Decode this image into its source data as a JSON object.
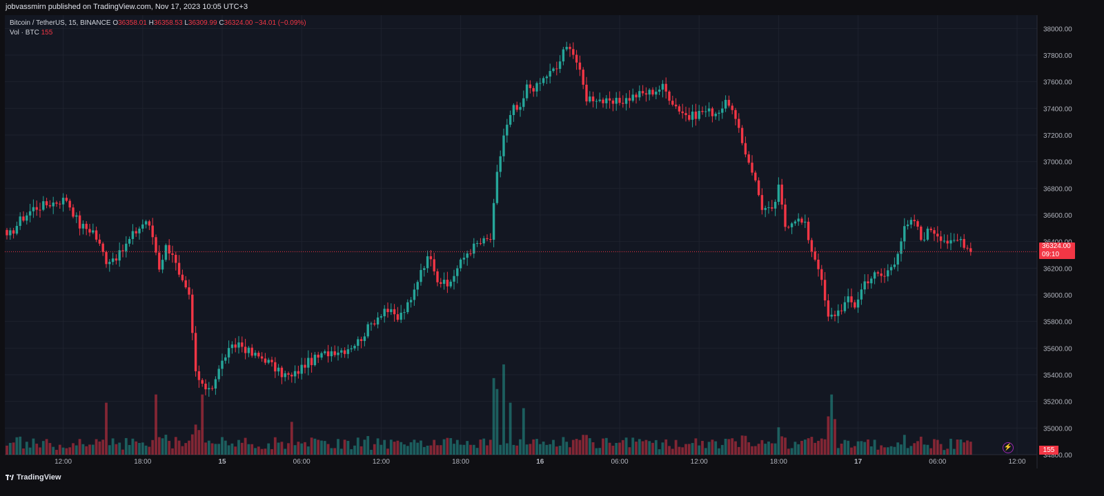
{
  "header": {
    "published": "jobvassmirn published on TradingView.com, Nov 17, 2023 10:05 UTC+3"
  },
  "legend": {
    "symbol": "Bitcoin / TetherUS, 15, BINANCE",
    "o_label": "O",
    "o_value": "36358.01",
    "h_label": "H",
    "h_value": "36358.53",
    "l_label": "L",
    "l_value": "36309.99",
    "c_label": "C",
    "c_value": "36324.00",
    "change": "−34.01 (−0.09%)",
    "vol_label": "Vol · BTC",
    "vol_value": "155"
  },
  "price_tag": {
    "price": "36324.00",
    "countdown": "09:10"
  },
  "vol_tag": "155",
  "footer": {
    "brand": "TradingView"
  },
  "colors": {
    "up": "#26a69a",
    "down": "#f23645",
    "grid": "#1e222d",
    "bg": "#131722",
    "text": "#b2b5be"
  },
  "chart_data": {
    "type": "candlestick",
    "title": "Bitcoin / TetherUS, 15, BINANCE",
    "ylim": [
      34800,
      38100
    ],
    "y_ticks": [
      "38000.00",
      "37800.00",
      "37600.00",
      "37400.00",
      "37200.00",
      "37000.00",
      "36800.00",
      "36600.00",
      "36400.00",
      "36200.00",
      "36000.00",
      "35800.00",
      "35600.00",
      "35400.00",
      "35200.00",
      "35000.00",
      "34800.00"
    ],
    "x_ticks": [
      "12:00",
      "18:00",
      "15",
      "06:00",
      "12:00",
      "18:00",
      "16",
      "06:00",
      "12:00",
      "18:00",
      "17",
      "06:00",
      "12:00"
    ],
    "bold_ticks": [
      "15",
      "16",
      "17"
    ],
    "x_tick_index": [
      17,
      41,
      65,
      89,
      113,
      137,
      161,
      185,
      209,
      233,
      257,
      281,
      305
    ],
    "last_price": 36324.0,
    "anchors": [
      [
        0,
        36420
      ],
      [
        4,
        36560
      ],
      [
        8,
        36650
      ],
      [
        12,
        36680
      ],
      [
        18,
        36720
      ],
      [
        22,
        36520
      ],
      [
        26,
        36480
      ],
      [
        30,
        36260
      ],
      [
        34,
        36300
      ],
      [
        38,
        36450
      ],
      [
        42,
        36560
      ],
      [
        44,
        36440
      ],
      [
        46,
        36210
      ],
      [
        48,
        36360
      ],
      [
        50,
        36320
      ],
      [
        52,
        36130
      ],
      [
        55,
        35980
      ],
      [
        57,
        35420
      ],
      [
        59,
        35300
      ],
      [
        62,
        35320
      ],
      [
        66,
        35550
      ],
      [
        70,
        35640
      ],
      [
        74,
        35550
      ],
      [
        78,
        35520
      ],
      [
        82,
        35420
      ],
      [
        86,
        35380
      ],
      [
        90,
        35480
      ],
      [
        94,
        35530
      ],
      [
        98,
        35580
      ],
      [
        102,
        35590
      ],
      [
        106,
        35650
      ],
      [
        110,
        35780
      ],
      [
        114,
        35900
      ],
      [
        118,
        35820
      ],
      [
        122,
        35950
      ],
      [
        125,
        36200
      ],
      [
        128,
        36300
      ],
      [
        130,
        36120
      ],
      [
        133,
        36060
      ],
      [
        136,
        36200
      ],
      [
        139,
        36320
      ],
      [
        142,
        36380
      ],
      [
        146,
        36420
      ],
      [
        148,
        36900
      ],
      [
        150,
        37200
      ],
      [
        153,
        37400
      ],
      [
        155,
        37380
      ],
      [
        157,
        37560
      ],
      [
        160,
        37560
      ],
      [
        163,
        37650
      ],
      [
        166,
        37700
      ],
      [
        168,
        37820
      ],
      [
        170,
        37880
      ],
      [
        172,
        37750
      ],
      [
        175,
        37480
      ],
      [
        178,
        37480
      ],
      [
        182,
        37430
      ],
      [
        186,
        37460
      ],
      [
        190,
        37500
      ],
      [
        194,
        37520
      ],
      [
        198,
        37560
      ],
      [
        202,
        37420
      ],
      [
        206,
        37330
      ],
      [
        210,
        37380
      ],
      [
        214,
        37370
      ],
      [
        218,
        37450
      ],
      [
        220,
        37300
      ],
      [
        222,
        37140
      ],
      [
        225,
        36940
      ],
      [
        228,
        36660
      ],
      [
        231,
        36620
      ],
      [
        233,
        36800
      ],
      [
        235,
        36520
      ],
      [
        238,
        36580
      ],
      [
        241,
        36520
      ],
      [
        243,
        36340
      ],
      [
        245,
        36220
      ],
      [
        248,
        35820
      ],
      [
        251,
        35880
      ],
      [
        254,
        35960
      ],
      [
        256,
        35920
      ],
      [
        259,
        36100
      ],
      [
        262,
        36150
      ],
      [
        265,
        36140
      ],
      [
        268,
        36260
      ],
      [
        271,
        36490
      ],
      [
        274,
        36560
      ],
      [
        276,
        36420
      ],
      [
        279,
        36500
      ],
      [
        282,
        36440
      ],
      [
        285,
        36380
      ],
      [
        288,
        36420
      ],
      [
        291,
        36324
      ]
    ],
    "volume_profile": {
      "baseline_btc_range": [
        8,
        28
      ],
      "spikes": [
        [
          30,
          95
        ],
        [
          45,
          110
        ],
        [
          57,
          55
        ],
        [
          58,
          45
        ],
        [
          59,
          110
        ],
        [
          86,
          60
        ],
        [
          147,
          140
        ],
        [
          148,
          120
        ],
        [
          150,
          165
        ],
        [
          152,
          95
        ],
        [
          156,
          85
        ],
        [
          222,
          35
        ],
        [
          233,
          50
        ],
        [
          248,
          70
        ],
        [
          249,
          110
        ],
        [
          250,
          65
        ]
      ]
    }
  }
}
